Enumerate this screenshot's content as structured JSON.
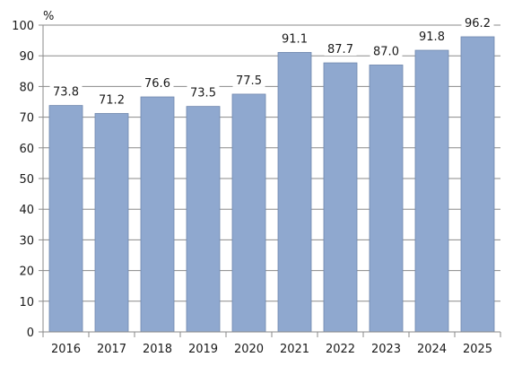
{
  "chart_data": {
    "type": "bar",
    "unit": "%",
    "categories": [
      "2016",
      "2017",
      "2018",
      "2019",
      "2020",
      "2021",
      "2022",
      "2023",
      "2024",
      "2025"
    ],
    "values": [
      73.8,
      71.2,
      76.6,
      73.5,
      77.5,
      91.1,
      87.7,
      87.0,
      91.8,
      96.2
    ],
    "value_labels": [
      "73.8",
      "71.2",
      "76.6",
      "73.5",
      "77.5",
      "91.1",
      "87.7",
      "87.0",
      "91.8",
      "96.2"
    ],
    "yticks": [
      0,
      10,
      20,
      30,
      40,
      50,
      60,
      70,
      80,
      90,
      100
    ],
    "ylim": [
      0,
      100
    ],
    "grid": true,
    "bar_color": "#8fa8cf",
    "bar_edge_color": "#6f87ad",
    "grid_color": "#8a8a8a"
  }
}
